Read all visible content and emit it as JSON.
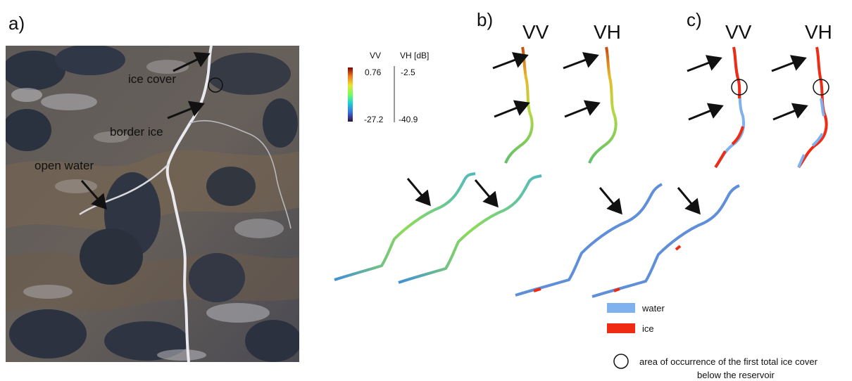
{
  "panels": {
    "a": "a)",
    "b": "b)",
    "c": "c)"
  },
  "polarizations": {
    "vv": "VV",
    "vh": "VH"
  },
  "annotations": {
    "ice_cover": "ice cover",
    "border_ice": "border ice",
    "open_water": "open water"
  },
  "colorbar": {
    "vv_label": "VV",
    "vh_label": "VH [dB]",
    "vv_max": "0.76",
    "vv_min": "-27.2",
    "vh_max": "-2.5",
    "vh_min": "-40.9",
    "colors": [
      "#30123b",
      "#3d6de0",
      "#1bd0d5",
      "#72fe5e",
      "#e8e433",
      "#f37819",
      "#7a0403"
    ]
  },
  "legend": {
    "water_label": "water",
    "ice_label": "ice",
    "circle_label_line1": "area of occurrence of the first total ice cover",
    "circle_label_line2": "below the reservoir",
    "water_color": "#7fb1ef",
    "ice_color": "#ef2b14"
  }
}
